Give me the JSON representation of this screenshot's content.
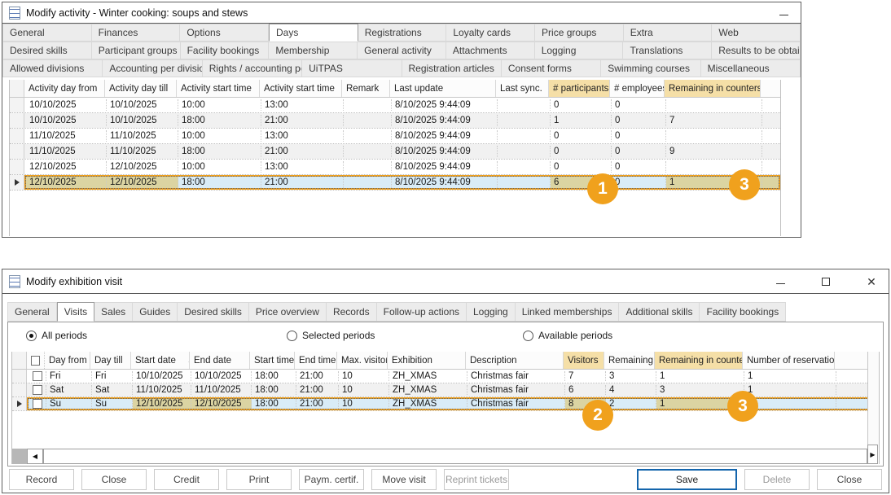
{
  "colors": {
    "callout_orange": "#F0A11D",
    "selection_blue": "#D9ECF7",
    "highlight_tan_header": "#F5DFA7",
    "highlight_tan_cell": "#DBD4A2",
    "save_button_blue": "#1465AC"
  },
  "activity_window": {
    "title": "Modify activity - Winter cooking: soups and stews",
    "controls": [
      "minimize"
    ],
    "active_tab": "Days",
    "tab_rows": [
      [
        "General",
        "Finances",
        "Options",
        "Days",
        "Registrations",
        "Loyalty cards",
        "Price groups",
        "Extra",
        "Web"
      ],
      [
        "Desired skills",
        "Participant groups",
        "Facility bookings",
        "Membership",
        "General activity",
        "Attachments",
        "Logging",
        "Translations",
        "Results to be obtained"
      ],
      [
        "Allowed divisions",
        "Accounting per division",
        "Rights / accounting per division",
        "UiTPAS",
        "Registration articles",
        "Consent forms",
        "Swimming courses",
        "Miscellaneous"
      ]
    ],
    "grid": {
      "columns": [
        "Activity day from",
        "Activity day till",
        "Activity start time",
        "Activity start time",
        "Remark",
        "Last update",
        "Last sync.",
        "# participants",
        "# employees",
        "Remaining in counters"
      ],
      "highlighted_columns": [
        7,
        9
      ],
      "rows": [
        [
          "10/10/2025",
          "10/10/2025",
          "10:00",
          "13:00",
          "",
          "8/10/2025 9:44:09",
          "",
          "0",
          "0",
          ""
        ],
        [
          "10/10/2025",
          "10/10/2025",
          "18:00",
          "21:00",
          "",
          "8/10/2025 9:44:09",
          "",
          "1",
          "0",
          "7"
        ],
        [
          "11/10/2025",
          "11/10/2025",
          "10:00",
          "13:00",
          "",
          "8/10/2025 9:44:09",
          "",
          "0",
          "0",
          ""
        ],
        [
          "11/10/2025",
          "11/10/2025",
          "18:00",
          "21:00",
          "",
          "8/10/2025 9:44:09",
          "",
          "0",
          "0",
          "9"
        ],
        [
          "12/10/2025",
          "12/10/2025",
          "10:00",
          "13:00",
          "",
          "8/10/2025 9:44:09",
          "",
          "0",
          "0",
          ""
        ],
        [
          "12/10/2025",
          "12/10/2025",
          "18:00",
          "21:00",
          "",
          "8/10/2025 9:44:09",
          "",
          "6",
          "0",
          "1"
        ]
      ],
      "selected_row": 5,
      "selected_tan_cells": [
        0,
        1,
        7,
        9
      ]
    }
  },
  "exhibition_window": {
    "title": "Modify exhibition visit",
    "controls": [
      "minimize",
      "maximize",
      "close"
    ],
    "active_tab": "Visits",
    "tabs": [
      "General",
      "Visits",
      "Sales",
      "Guides",
      "Desired skills",
      "Price overview",
      "Records",
      "Follow-up actions",
      "Logging",
      "Linked memberships",
      "Additional skills",
      "Facility bookings"
    ],
    "radios": [
      {
        "label": "All periods",
        "selected": true
      },
      {
        "label": "Selected periods",
        "selected": false
      },
      {
        "label": "Available periods",
        "selected": false
      }
    ],
    "grid": {
      "columns": [
        "Day from",
        "Day till",
        "Start date",
        "End date",
        "Start time",
        "End time",
        "Max. visitors",
        "Exhibition",
        "Description",
        "Visitors",
        "Remaining",
        "Remaining in counters",
        "Number of reservations"
      ],
      "highlighted_columns": [
        9,
        11
      ],
      "sort_column_index": 2,
      "sort_direction": "ascending",
      "rows": [
        [
          "Fri",
          "Fri",
          "10/10/2025",
          "10/10/2025",
          "18:00",
          "21:00",
          "10",
          "ZH_XMAS",
          "Christmas fair",
          "7",
          "3",
          "1",
          "1"
        ],
        [
          "Sat",
          "Sat",
          "11/10/2025",
          "11/10/2025",
          "18:00",
          "21:00",
          "10",
          "ZH_XMAS",
          "Christmas fair",
          "6",
          "4",
          "3",
          "1"
        ],
        [
          "Su",
          "Su",
          "12/10/2025",
          "12/10/2025",
          "18:00",
          "21:00",
          "10",
          "ZH_XMAS",
          "Christmas fair",
          "8",
          "2",
          "1",
          "1"
        ]
      ],
      "selected_row": 2,
      "selected_tan_cells": [
        2,
        3,
        9,
        11
      ]
    },
    "buttons_left": [
      {
        "label": "Record",
        "disabled": false
      },
      {
        "label": "Close",
        "disabled": false
      },
      {
        "label": "Credit",
        "disabled": false
      },
      {
        "label": "Print",
        "disabled": false
      },
      {
        "label": "Paym. certif.",
        "disabled": false
      },
      {
        "label": "Move visit",
        "disabled": false
      },
      {
        "label": "Reprint tickets",
        "disabled": true
      }
    ],
    "buttons_right": [
      {
        "label": "Save",
        "primary": true,
        "disabled": false
      },
      {
        "label": "Delete",
        "primary": false,
        "disabled": true
      },
      {
        "label": "Close",
        "primary": false,
        "disabled": false
      }
    ]
  },
  "callouts": [
    {
      "label": "1"
    },
    {
      "label": "2"
    },
    {
      "label": "3"
    },
    {
      "label": "3"
    }
  ]
}
